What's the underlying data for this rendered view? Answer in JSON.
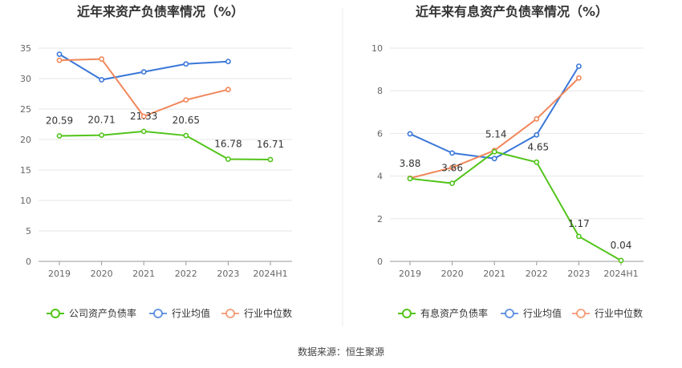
{
  "chart_data": [
    {
      "type": "line",
      "title": "近年来资产负债率情况（%）",
      "categories": [
        "2019",
        "2020",
        "2021",
        "2022",
        "2023",
        "2024H1"
      ],
      "ylim": [
        0,
        35
      ],
      "yticks": [
        0,
        5,
        10,
        15,
        20,
        25,
        30,
        35
      ],
      "series": [
        {
          "name": "公司资产负债率",
          "color": "#52c41a",
          "values": [
            20.59,
            20.71,
            21.33,
            20.65,
            16.78,
            16.71
          ],
          "labels": [
            "20.59",
            "20.71",
            "21.33",
            "20.65",
            "16.78",
            "16.71"
          ]
        },
        {
          "name": "行业均值",
          "color": "#3a77d8",
          "values": [
            34.0,
            29.8,
            31.1,
            32.4,
            32.8,
            null
          ]
        },
        {
          "name": "行业中位数",
          "color": "#f0875a",
          "values": [
            33.0,
            33.2,
            23.8,
            26.5,
            28.2,
            null
          ]
        }
      ]
    },
    {
      "type": "line",
      "title": "近年来有息资产负债率情况（%）",
      "categories": [
        "2019",
        "2020",
        "2021",
        "2022",
        "2023",
        "2024H1"
      ],
      "ylim": [
        0,
        10
      ],
      "yticks": [
        0,
        2,
        4,
        6,
        8,
        10
      ],
      "series": [
        {
          "name": "有息资产负债率",
          "color": "#52c41a",
          "values": [
            3.88,
            3.66,
            5.14,
            4.65,
            1.17,
            0.04
          ],
          "labels": [
            "3.88",
            "3.66",
            "5.14",
            "4.65",
            "1.17",
            "0.04"
          ]
        },
        {
          "name": "行业均值",
          "color": "#3a77d8",
          "values": [
            5.98,
            5.08,
            4.82,
            5.93,
            9.15,
            null
          ]
        },
        {
          "name": "行业中位数",
          "color": "#f0875a",
          "values": [
            3.9,
            4.4,
            5.2,
            6.68,
            8.6,
            null
          ]
        }
      ]
    }
  ],
  "source": "数据来源：恒生聚源"
}
